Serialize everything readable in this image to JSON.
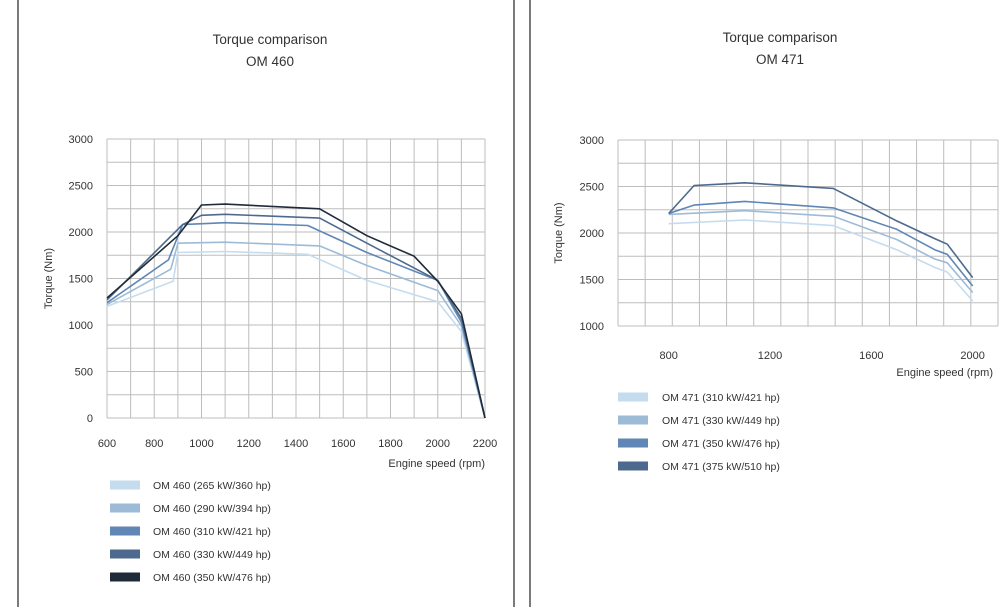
{
  "chart_data": [
    {
      "type": "line",
      "title": "Torque comparison",
      "subtitle": "OM 460",
      "xlabel": "Engine speed (rpm)",
      "ylabel": "Torque (Nm)",
      "xlim": [
        600,
        2200
      ],
      "ylim": [
        0,
        3000
      ],
      "x_ticks": [
        600,
        800,
        1000,
        1200,
        1400,
        1600,
        1800,
        2000,
        2200
      ],
      "y_ticks": [
        0,
        500,
        1000,
        1500,
        2000,
        2500,
        3000
      ],
      "grid": true,
      "legend_position": "bottom",
      "series": [
        {
          "name": "OM 460 (265 kW/360 hp)",
          "color": "#c5dcef",
          "points": [
            [
              600,
              1200
            ],
            [
              880,
              1470
            ],
            [
              900,
              1780
            ],
            [
              1100,
              1790
            ],
            [
              1450,
              1760
            ],
            [
              1700,
              1480
            ],
            [
              2000,
              1250
            ],
            [
              2100,
              930
            ],
            [
              2200,
              0
            ]
          ]
        },
        {
          "name": "OM 460 (290 kW/394 hp)",
          "color": "#9dbbd7",
          "points": [
            [
              600,
              1220
            ],
            [
              870,
              1600
            ],
            [
              900,
              1880
            ],
            [
              1100,
              1890
            ],
            [
              1500,
              1850
            ],
            [
              1700,
              1640
            ],
            [
              2000,
              1370
            ],
            [
              2100,
              990
            ],
            [
              2200,
              0
            ]
          ]
        },
        {
          "name": "OM 460 (310 kW/421 hp)",
          "color": "#5f86b4",
          "points": [
            [
              600,
              1240
            ],
            [
              860,
              1700
            ],
            [
              920,
              2080
            ],
            [
              1100,
              2100
            ],
            [
              1450,
              2070
            ],
            [
              1700,
              1780
            ],
            [
              2000,
              1480
            ],
            [
              2100,
              1030
            ],
            [
              2200,
              0
            ]
          ]
        },
        {
          "name": "OM 460 (330 kW/449 hp)",
          "color": "#4d6a8e",
          "points": [
            [
              600,
              1270
            ],
            [
              920,
              2080
            ],
            [
              1000,
              2180
            ],
            [
              1100,
              2190
            ],
            [
              1500,
              2150
            ],
            [
              1700,
              1880
            ],
            [
              2000,
              1480
            ],
            [
              2100,
              1070
            ],
            [
              2200,
              0
            ]
          ]
        },
        {
          "name": "OM 460 (350 kW/476 hp)",
          "color": "#1f2b38",
          "points": [
            [
              600,
              1290
            ],
            [
              900,
              1960
            ],
            [
              1000,
              2290
            ],
            [
              1100,
              2300
            ],
            [
              1500,
              2250
            ],
            [
              1700,
              1960
            ],
            [
              1900,
              1740
            ],
            [
              2000,
              1470
            ],
            [
              2100,
              1120
            ],
            [
              2200,
              0
            ]
          ]
        }
      ]
    },
    {
      "type": "line",
      "title": "Torque comparison",
      "subtitle": "OM 471",
      "xlabel": "Engine speed (rpm)",
      "ylabel": "Torque (Nm)",
      "xlim": [
        600,
        2100
      ],
      "ylim": [
        1000,
        3000
      ],
      "x_ticks": [
        800,
        1200,
        1600,
        2000
      ],
      "y_ticks": [
        1000,
        1500,
        2000,
        2500,
        3000
      ],
      "grid": true,
      "legend_position": "bottom",
      "series": [
        {
          "name": "OM 471 (310 kW/421 hp)",
          "color": "#c5dcef",
          "points": [
            [
              800,
              2100
            ],
            [
              1100,
              2140
            ],
            [
              1450,
              2080
            ],
            [
              1700,
              1820
            ],
            [
              1850,
              1630
            ],
            [
              1900,
              1580
            ],
            [
              2000,
              1270
            ]
          ]
        },
        {
          "name": "OM 471 (330 kW/449 hp)",
          "color": "#9dbbd7",
          "points": [
            [
              800,
              2200
            ],
            [
              1100,
              2240
            ],
            [
              1450,
              2180
            ],
            [
              1700,
              1930
            ],
            [
              1850,
              1720
            ],
            [
              1900,
              1680
            ],
            [
              2000,
              1360
            ]
          ]
        },
        {
          "name": "OM 471 (350 kW/476 hp)",
          "color": "#5f86b4",
          "points": [
            [
              800,
              2210
            ],
            [
              900,
              2300
            ],
            [
              1100,
              2340
            ],
            [
              1450,
              2270
            ],
            [
              1700,
              2040
            ],
            [
              1850,
              1820
            ],
            [
              1900,
              1770
            ],
            [
              2000,
              1430
            ]
          ]
        },
        {
          "name": "OM 471 (375 kW/510 hp)",
          "color": "#4d6a8e",
          "points": [
            [
              800,
              2210
            ],
            [
              900,
              2510
            ],
            [
              1100,
              2540
            ],
            [
              1450,
              2480
            ],
            [
              1700,
              2130
            ],
            [
              1850,
              1940
            ],
            [
              1900,
              1880
            ],
            [
              2000,
              1520
            ]
          ]
        }
      ]
    }
  ]
}
